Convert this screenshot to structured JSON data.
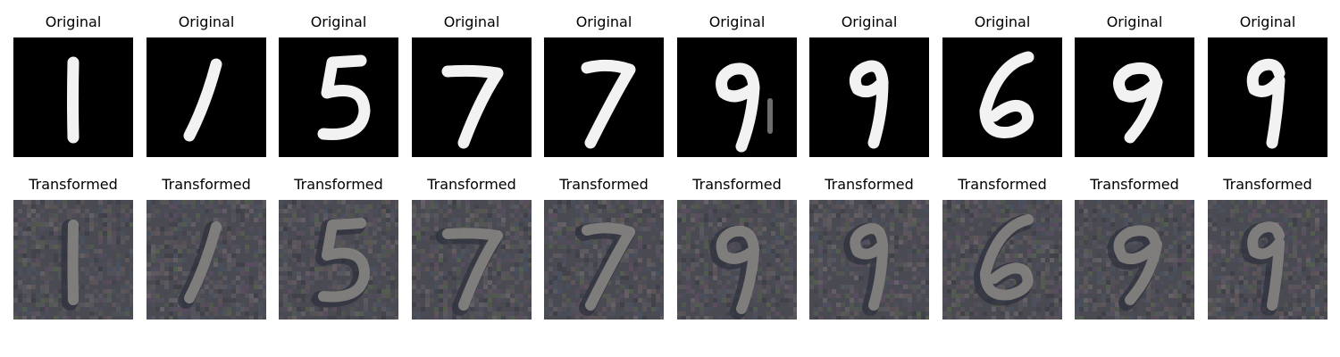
{
  "figure": {
    "rows": [
      {
        "id": "original",
        "panels": [
          {
            "title": "Original",
            "digit": "1"
          },
          {
            "title": "Original",
            "digit": "1"
          },
          {
            "title": "Original",
            "digit": "5"
          },
          {
            "title": "Original",
            "digit": "7"
          },
          {
            "title": "Original",
            "digit": "7"
          },
          {
            "title": "Original",
            "digit": "9"
          },
          {
            "title": "Original",
            "digit": "9"
          },
          {
            "title": "Original",
            "digit": "6"
          },
          {
            "title": "Original",
            "digit": "9"
          },
          {
            "title": "Original",
            "digit": "9"
          }
        ]
      },
      {
        "id": "transformed",
        "panels": [
          {
            "title": "Transformed",
            "digit": "1"
          },
          {
            "title": "Transformed",
            "digit": "1"
          },
          {
            "title": "Transformed",
            "digit": "5"
          },
          {
            "title": "Transformed",
            "digit": "7"
          },
          {
            "title": "Transformed",
            "digit": "7"
          },
          {
            "title": "Transformed",
            "digit": "9"
          },
          {
            "title": "Transformed",
            "digit": "9"
          },
          {
            "title": "Transformed",
            "digit": "6"
          },
          {
            "title": "Transformed",
            "digit": "9"
          },
          {
            "title": "Transformed",
            "digit": "9"
          }
        ]
      }
    ],
    "colors": {
      "original_background": "#000000",
      "original_stroke": "#f2f2f2",
      "transformed_background": "#4a4a52",
      "transformed_stroke": "#8c8a86"
    }
  }
}
